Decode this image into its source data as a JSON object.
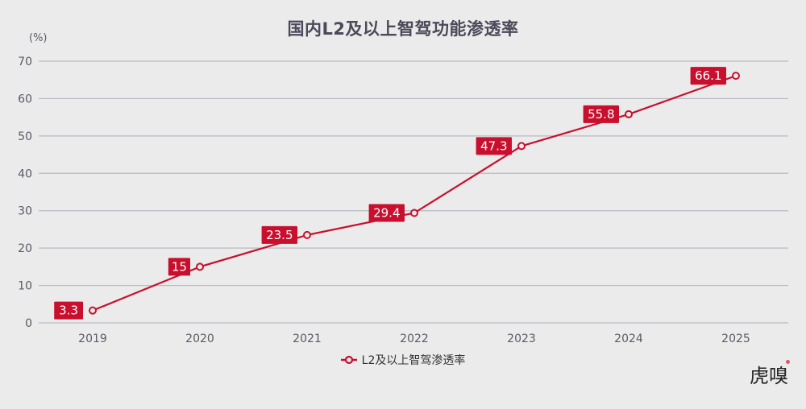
{
  "chart_data": {
    "type": "line",
    "title": "国内L2及以上智驾功能渗透率",
    "ylabel": "(%)",
    "xlabel": "",
    "categories": [
      "2019",
      "2020",
      "2021",
      "2022",
      "2023",
      "2024",
      "2025"
    ],
    "series": [
      {
        "name": "L2及以上智驾渗透率",
        "values": [
          3.3,
          15,
          23.5,
          29.4,
          47.3,
          55.8,
          66.1
        ],
        "data_labels": [
          "3.3",
          "15",
          "23.5",
          "29.4",
          "47.3",
          "55.8",
          "66.1"
        ]
      }
    ],
    "ylim": [
      0,
      70
    ],
    "yticks": [
      "0",
      "10",
      "20",
      "30",
      "40",
      "50",
      "60",
      "70"
    ],
    "grid": true,
    "legend_position": "bottom",
    "colors": {
      "line": "#c8102e",
      "grid": "#b9b9c2",
      "axis_text": "#5a5a66"
    }
  },
  "logo": {
    "text": "虎嗅"
  }
}
